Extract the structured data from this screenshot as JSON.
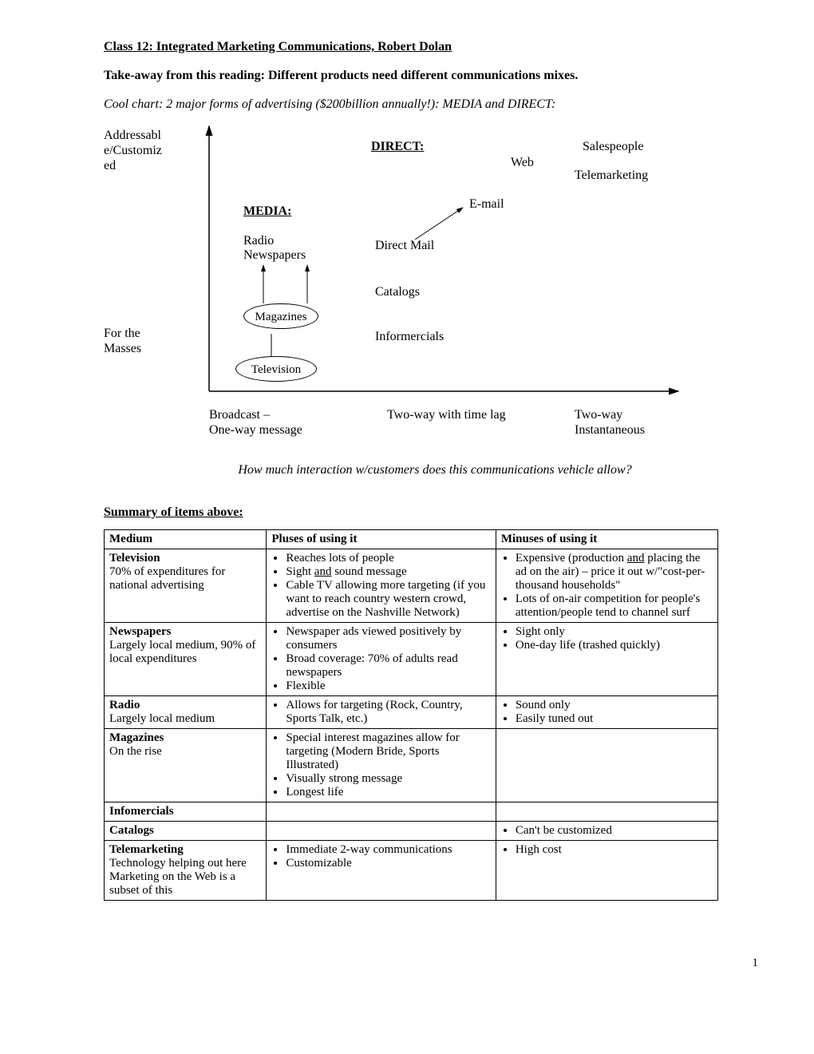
{
  "header": {
    "title": "Class 12: Integrated Marketing Communications, Robert Dolan",
    "takeaway": "Take-away from this reading:  Different products need different communications mixes.",
    "cool_chart": "Cool chart:  2 major forms of advertising ($200billion annually!): MEDIA and DIRECT:"
  },
  "diagram": {
    "y_top_label_1": "Addressabl",
    "y_top_label_2": "e/Customiz",
    "y_top_label_3": "ed",
    "y_bottom_label_1": "For the",
    "y_bottom_label_2": "Masses",
    "direct_hdr": "DIRECT:",
    "media_hdr": "MEDIA:",
    "web": "Web",
    "salespeople": "Salespeople",
    "telemarketing": "Telemarketing",
    "email": "E-mail",
    "radio": "Radio",
    "newspapers": "Newspapers",
    "direct_mail": "Direct Mail",
    "catalogs": "Catalogs",
    "infomercials": "Informercials",
    "magazines": "Magazines",
    "television": "Television",
    "x_left_1": "Broadcast –",
    "x_left_2": "One-way message",
    "x_mid": "Two-way with time lag",
    "x_right_1": "Two-way",
    "x_right_2": "Instantaneous",
    "interaction_q": "How much interaction w/customers does this communications vehicle allow?",
    "axis_color": "#000000",
    "arrow_color": "#000000"
  },
  "summary": {
    "header": "Summary of items above:",
    "columns": [
      "Medium",
      "Pluses of using it",
      "Minuses of using it"
    ],
    "rows": [
      {
        "medium_name": "Television",
        "medium_desc": "70% of expenditures for national advertising",
        "pluses_html": "<ul class='cell'><li>Reaches lots of people</li><li>Sight <span class='under'>and</span> sound message</li><li>Cable TV allowing more targeting (if you want to reach country western crowd, advertise on the Nashville Network)</li></ul>",
        "minuses_html": "<ul class='cell'><li>Expensive (production <span class='under'>and</span> placing the ad on the air) – price it out w/\"cost-per-thousand households\"</li><li>Lots of on-air competition for people's attention/people tend to channel surf</li></ul>"
      },
      {
        "medium_name": "Newspapers",
        "medium_desc": "Largely local medium, 90% of local expenditures",
        "pluses_html": "<ul class='cell'><li>Newspaper ads viewed positively by consumers</li><li>Broad coverage: 70% of adults read newspapers</li><li>Flexible</li></ul>",
        "minuses_html": "<ul class='cell'><li>Sight only</li><li>One-day life (trashed quickly)</li></ul>"
      },
      {
        "medium_name": "Radio",
        "medium_desc": "Largely local medium",
        "pluses_html": "<ul class='cell'><li>Allows for targeting (Rock, Country, Sports Talk, etc.)</li></ul>",
        "minuses_html": "<ul class='cell'><li>Sound only</li><li>Easily tuned out</li></ul>"
      },
      {
        "medium_name": "Magazines",
        "medium_desc": "On the rise",
        "pluses_html": "<ul class='cell'><li>Special interest magazines allow for targeting (Modern Bride, Sports Illustrated)</li><li>Visually strong message</li><li>Longest life</li></ul>",
        "minuses_html": ""
      },
      {
        "medium_name": "Infomercials",
        "medium_desc": "",
        "pluses_html": "",
        "minuses_html": ""
      },
      {
        "medium_name": "Catalogs",
        "medium_desc": "",
        "pluses_html": "",
        "minuses_html": "<ul class='cell'><li>Can't be customized</li></ul>"
      },
      {
        "medium_name": "Telemarketing",
        "medium_desc": "Technology helping out here Marketing on the Web is a subset of this",
        "pluses_html": "<ul class='cell'><li>Immediate 2-way communications</li><li>Customizable</li></ul>",
        "minuses_html": "<ul class='cell'><li>High cost</li></ul>"
      }
    ]
  },
  "page_number": "1"
}
